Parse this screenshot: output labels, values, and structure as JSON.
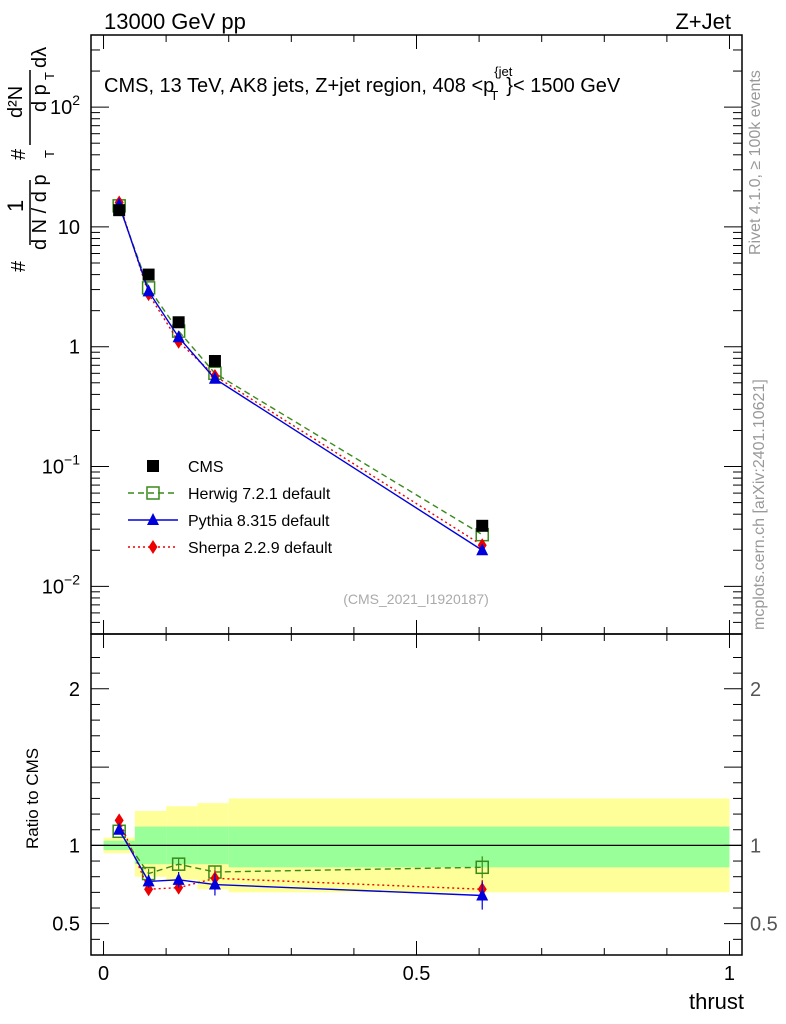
{
  "header": {
    "left": "13000 GeV pp",
    "right": "Z+Jet"
  },
  "side_labels": {
    "rivet": "Rivet 4.1.0, ≥ 100k events",
    "mcplots": "mcplots.cern.ch [arXiv:2401.10621]"
  },
  "title": {
    "main": "CMS, 13 TeV, AK8 jets, Z+jet region, 408 <p",
    "sup": "{jet",
    "sub": "T",
    "tail": "}< 1500 GeV"
  },
  "watermark": "(CMS_2021_I1920187)",
  "ylabel_top": {
    "hash1": "#",
    "one": "1",
    "dN": "d N / d p",
    "T1": "T",
    "hash2": "#",
    "d2N": "d²N",
    "dpdl": "d p",
    "T2": "T",
    "dlambda": "dλ"
  },
  "ylabel_bottom": "Ratio to CMS",
  "xlabel": "thrust",
  "colors": {
    "cms": "#000000",
    "herwig": "#3a8a1a",
    "pythia": "#0000dd",
    "sherpa": "#ee0000",
    "band_inner": "#99ff99",
    "band_outer": "#ffff99"
  },
  "legend": [
    {
      "key": "cms",
      "label": "CMS"
    },
    {
      "key": "herwig",
      "label": "Herwig 7.2.1 default"
    },
    {
      "key": "pythia",
      "label": "Pythia 8.315 default"
    },
    {
      "key": "sherpa",
      "label": "Sherpa 2.2.9 default"
    }
  ],
  "chart_data": {
    "type": "scatter",
    "title": "CMS, 13 TeV, AK8 jets, Z+jet region, 408 < pT(jet) < 1500 GeV",
    "xlabel": "thrust",
    "xlim": [
      -0.02,
      1.02
    ],
    "x_ticks": [
      {
        "v": 0,
        "label": "0"
      },
      {
        "v": 0.5,
        "label": "0.5"
      },
      {
        "v": 1,
        "label": "1"
      }
    ],
    "bin_edges": [
      0.0,
      0.05,
      0.1,
      0.15,
      0.2,
      1.0
    ],
    "x": [
      0.025,
      0.072,
      0.12,
      0.178,
      0.605
    ],
    "top": {
      "yscale": "log",
      "ylim": [
        0.004,
        400
      ],
      "y_ticks": [
        {
          "v": 0.01,
          "base": "10",
          "exp": "−2"
        },
        {
          "v": 0.1,
          "base": "10",
          "exp": "−1"
        },
        {
          "v": 1,
          "base": "1",
          "exp": ""
        },
        {
          "v": 10,
          "base": "10",
          "exp": ""
        },
        {
          "v": 100,
          "base": "10",
          "exp": "2"
        }
      ],
      "series": [
        {
          "name": "CMS",
          "key": "cms",
          "values": [
            13.8,
            4.0,
            1.6,
            0.76,
            0.032
          ]
        },
        {
          "name": "Herwig 7.2.1 default",
          "key": "herwig",
          "values": [
            15.0,
            3.1,
            1.35,
            0.6,
            0.027
          ]
        },
        {
          "name": "Pythia 8.315 default",
          "key": "pythia",
          "values": [
            15.3,
            2.9,
            1.2,
            0.54,
            0.02
          ]
        },
        {
          "name": "Sherpa 2.2.9 default",
          "key": "sherpa",
          "values": [
            16.0,
            2.75,
            1.1,
            0.57,
            0.022
          ]
        }
      ]
    },
    "ratio": {
      "ylabel": "Ratio to CMS",
      "ylim": [
        0.3,
        2.35
      ],
      "y_ticks": [
        {
          "v": 0.5,
          "label": "0.5"
        },
        {
          "v": 1,
          "label": "1"
        },
        {
          "v": 2,
          "label": "2"
        }
      ],
      "band_inner": [
        [
          0.97,
          1.03
        ],
        [
          0.88,
          1.12
        ],
        [
          0.88,
          1.12
        ],
        [
          0.88,
          1.12
        ],
        [
          0.86,
          1.12
        ]
      ],
      "band_outer": [
        [
          0.95,
          1.05
        ],
        [
          0.8,
          1.22
        ],
        [
          0.78,
          1.25
        ],
        [
          0.72,
          1.27
        ],
        [
          0.7,
          1.3
        ]
      ],
      "series": [
        {
          "name": "Herwig 7.2.1 default",
          "key": "herwig",
          "values": [
            1.09,
            0.82,
            0.88,
            0.83,
            0.86
          ],
          "err": [
            0.02,
            0.03,
            0.04,
            0.04,
            0.07
          ]
        },
        {
          "name": "Pythia 8.315 default",
          "key": "pythia",
          "values": [
            1.1,
            0.77,
            0.78,
            0.75,
            0.68
          ],
          "err": [
            0.02,
            0.04,
            0.05,
            0.07,
            0.09
          ]
        },
        {
          "name": "Sherpa 2.2.9 default",
          "key": "sherpa",
          "values": [
            1.16,
            0.72,
            0.73,
            0.79,
            0.72
          ],
          "err": [
            0.02,
            0.03,
            0.04,
            0.05,
            0.06
          ]
        }
      ]
    }
  }
}
